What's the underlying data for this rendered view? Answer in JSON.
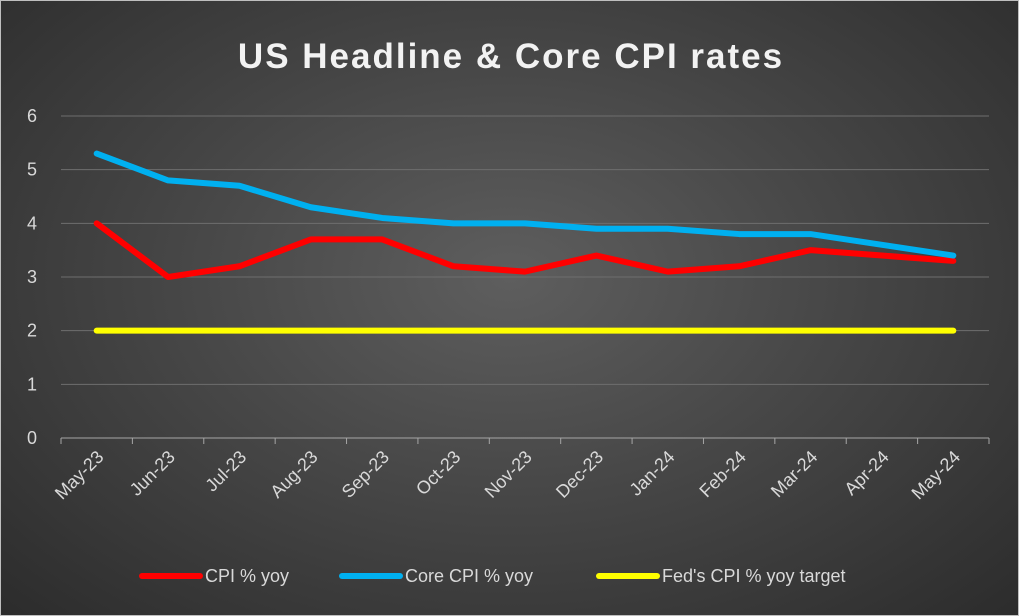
{
  "chart_data": {
    "type": "line",
    "title": "US Headline & Core CPI rates",
    "xlabel": "",
    "ylabel": "",
    "ylim": [
      0,
      6
    ],
    "yticks": [
      "0",
      "1",
      "2",
      "3",
      "4",
      "5",
      "6"
    ],
    "grid": true,
    "legend_position": "bottom",
    "categories": [
      "May-23",
      "Jun-23",
      "Jul-23",
      "Aug-23",
      "Sep-23",
      "Oct-23",
      "Nov-23",
      "Dec-23",
      "Jan-24",
      "Feb-24",
      "Mar-24",
      "Apr-24",
      "May-24"
    ],
    "series": [
      {
        "name": "CPI % yoy",
        "color": "#ff0000",
        "values": [
          4.0,
          3.0,
          3.2,
          3.7,
          3.7,
          3.2,
          3.1,
          3.4,
          3.1,
          3.2,
          3.5,
          3.4,
          3.3
        ]
      },
      {
        "name": "Core CPI % yoy",
        "color": "#00b0f0",
        "values": [
          5.3,
          4.8,
          4.7,
          4.3,
          4.1,
          4.0,
          4.0,
          3.9,
          3.9,
          3.8,
          3.8,
          3.6,
          3.4
        ]
      },
      {
        "name": "Fed's CPI % yoy target",
        "color": "#ffff00",
        "values": [
          2,
          2,
          2,
          2,
          2,
          2,
          2,
          2,
          2,
          2,
          2,
          2,
          2
        ]
      }
    ]
  }
}
